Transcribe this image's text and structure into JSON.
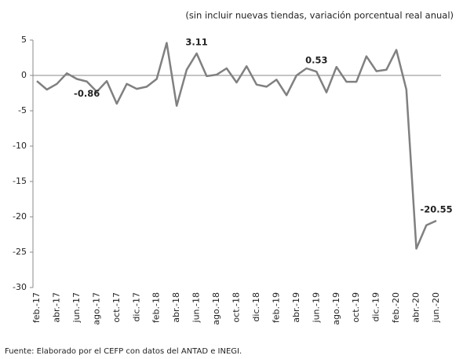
{
  "chart_data": {
    "type": "line",
    "subtitle": "(sin incluir nuevas tiendas, variación porcentual real anual)",
    "source": "Fuente: Elaborado por el CEFP con datos del ANTAD e INEGI.",
    "categories": [
      "feb.-17",
      null,
      "abr.-17",
      null,
      "jun.-17",
      null,
      "ago.-17",
      null,
      "oct.-17",
      null,
      "dic.-17",
      null,
      "feb.-18",
      null,
      "abr.-18",
      null,
      "jun.-18",
      null,
      "ago.-18",
      null,
      "oct.-18",
      null,
      "dic.-18",
      null,
      "feb.-19",
      null,
      "abr.-19",
      null,
      "jun.-19",
      null,
      "ago.-19",
      null,
      "oct.-19",
      null,
      "dic.-19",
      null,
      "feb.-20",
      null,
      "abr.-20",
      null,
      "jun.-20"
    ],
    "values": [
      -0.8,
      -2.0,
      -1.2,
      0.3,
      -0.5,
      -0.86,
      -2.3,
      -0.8,
      -4.0,
      -1.2,
      -1.9,
      -1.6,
      -0.5,
      4.6,
      -4.3,
      0.8,
      3.11,
      -0.1,
      0.1,
      1.0,
      -1.0,
      1.3,
      -1.3,
      -1.6,
      -0.6,
      -2.8,
      0,
      1.0,
      0.53,
      -2.4,
      1.2,
      -0.9,
      -0.9,
      2.7,
      0.6,
      0.8,
      3.6,
      -2.0,
      -24.5,
      -21.2,
      -20.55
    ],
    "value_labels": [
      null,
      null,
      null,
      null,
      null,
      "-0.86",
      null,
      null,
      null,
      null,
      null,
      null,
      null,
      null,
      null,
      null,
      "3.11",
      null,
      null,
      null,
      null,
      null,
      null,
      null,
      null,
      null,
      null,
      null,
      "0.53",
      null,
      null,
      null,
      null,
      null,
      null,
      null,
      null,
      null,
      null,
      null,
      "-20.55"
    ],
    "color": "#808080",
    "ylim": [
      -30,
      5
    ],
    "yticks": [
      5,
      0,
      -5,
      -10,
      -15,
      -20,
      -25,
      -30
    ]
  }
}
